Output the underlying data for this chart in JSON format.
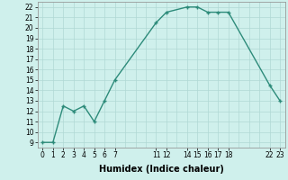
{
  "x": [
    0,
    1,
    2,
    3,
    4,
    5,
    6,
    7,
    11,
    12,
    14,
    15,
    16,
    17,
    18,
    22,
    23
  ],
  "y": [
    9,
    9,
    12.5,
    12,
    12.5,
    11,
    13,
    15,
    20.5,
    21.5,
    22,
    22,
    21.5,
    21.5,
    21.5,
    14.5,
    13
  ],
  "title": "",
  "xlabel": "Humidex (Indice chaleur)",
  "ylabel": "",
  "xlim": [
    -0.5,
    23.5
  ],
  "ylim": [
    8.5,
    22.5
  ],
  "xticks": [
    0,
    1,
    2,
    3,
    4,
    5,
    6,
    7,
    11,
    12,
    14,
    15,
    16,
    17,
    18,
    22,
    23
  ],
  "yticks": [
    9,
    10,
    11,
    12,
    13,
    14,
    15,
    16,
    17,
    18,
    19,
    20,
    21,
    22
  ],
  "line_color": "#2d8b7a",
  "marker_color": "#2d8b7a",
  "bg_color": "#cff0ec",
  "grid_color": "#b0d8d4",
  "fig_bg": "#cff0ec",
  "tick_fontsize": 5.5,
  "xlabel_fontsize": 7.0
}
